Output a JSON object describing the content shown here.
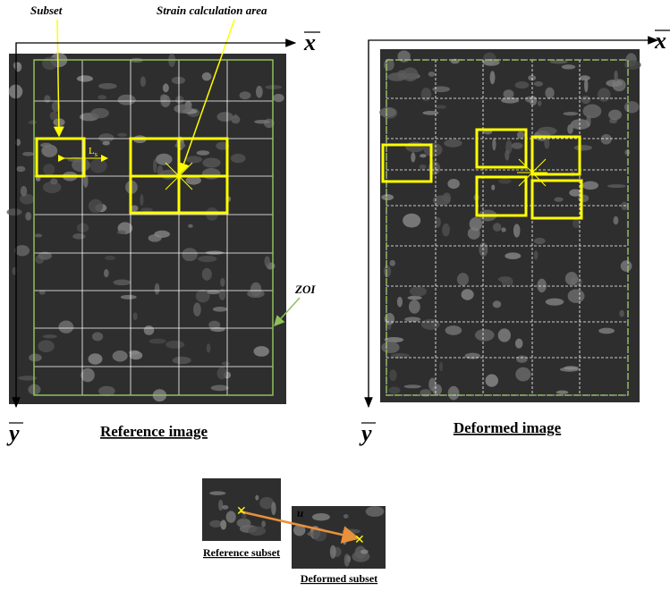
{
  "annotations": {
    "subset": "Subset",
    "strain_area": "Strain calculation area",
    "subset_length": "L",
    "subset_length_sub": "s",
    "zoi": "ZOI"
  },
  "reference": {
    "x_axis": "x",
    "y_axis": "y",
    "caption": "Reference image"
  },
  "deformed": {
    "x_axis": "x",
    "y_axis": "y",
    "caption": "Deformed image"
  },
  "subsets": {
    "displacement": "u",
    "reference_caption": "Reference subset",
    "deformed_caption": "Deformed subset"
  }
}
